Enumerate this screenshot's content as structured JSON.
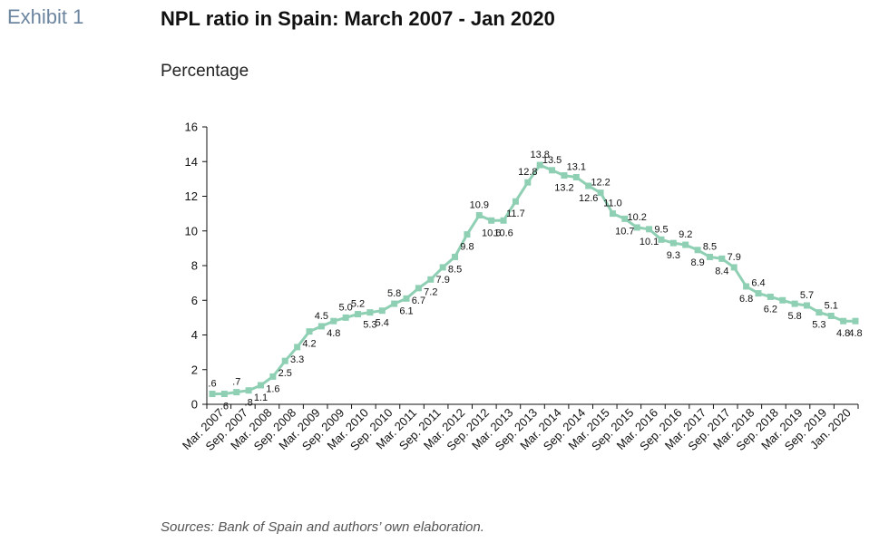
{
  "header": {
    "exhibit": "Exhibit 1",
    "title": "NPL ratio in Spain: March 2007 - Jan 2020",
    "subtitle": "Percentage"
  },
  "footer": {
    "source": "Sources: Bank of Spain and authors’ own elaboration."
  },
  "chart_data": {
    "type": "line",
    "title": "NPL ratio in Spain: March 2007 - Jan 2020",
    "ylabel": "Percentage",
    "ylim": [
      0,
      16
    ],
    "yticks": [
      "0",
      "2",
      "4",
      "6",
      "8",
      "10",
      "12",
      "14",
      "16"
    ],
    "line_color": "#8fd0b4",
    "x_tick_labels": [
      "Mar. 2007",
      "Sep. 2007",
      "Mar. 2008",
      "Sep. 2008",
      "Mar. 2009",
      "Sep. 2009",
      "Mar. 2010",
      "Sep. 2010",
      "Mar. 2011",
      "Sep. 2011",
      "Mar. 2012",
      "Sep. 2012",
      "Mar. 2013",
      "Sep. 2013",
      "Mar. 2014",
      "Sep. 2014",
      "Mar. 2015",
      "Sep. 2015",
      "Mar. 2016",
      "Sep. 2016",
      "Mar. 2017",
      "Sep. 2017",
      "Mar. 2018",
      "Sep. 2018",
      "Mar. 2019",
      "Sep. 2019",
      "Jan. 2020"
    ],
    "values": [
      0.6,
      0.6,
      0.7,
      0.8,
      1.1,
      1.6,
      2.5,
      3.3,
      4.2,
      4.5,
      4.8,
      5.0,
      5.2,
      5.3,
      5.4,
      5.8,
      6.1,
      6.7,
      7.2,
      7.9,
      8.5,
      9.8,
      10.9,
      10.6,
      10.6,
      11.7,
      12.8,
      13.8,
      13.5,
      13.2,
      13.1,
      12.6,
      12.2,
      11.0,
      10.7,
      10.2,
      10.1,
      9.5,
      9.3,
      9.2,
      8.9,
      8.5,
      8.4,
      7.9,
      6.8,
      6.4,
      6.2,
      6.0,
      5.8,
      5.7,
      5.3,
      5.1,
      4.8,
      4.8
    ],
    "value_labels": [
      ".6",
      ".6",
      ".7",
      ".8",
      "1.1",
      "1.6",
      "2.5",
      "3.3",
      "4.2",
      "4.5",
      "4.8",
      "5.0",
      "5.2",
      "5.3",
      "5.4",
      "5.8",
      "6.1",
      "6.7",
      "7.2",
      "7.9",
      "8.5",
      "9.8",
      "10.9",
      "10.6",
      "10.6",
      "11.7",
      "12.8",
      "13.8",
      "13.5",
      "13.2",
      "13.1",
      "12.6",
      "12.2",
      "11.0",
      "10.7",
      "10.2",
      "10.1",
      "9.5",
      "9.3",
      "9.2",
      "8.9",
      "8.5",
      "8.4",
      "7.9",
      "6.8",
      "6.4",
      "6.2",
      "",
      "5.8",
      "5.7",
      "5.3",
      "5.1",
      "4.8",
      "4.8"
    ],
    "label_position": [
      "above",
      "below",
      "above",
      "below",
      "below",
      "below",
      "below",
      "below",
      "below",
      "above",
      "below",
      "above",
      "above",
      "below",
      "below",
      "above",
      "below",
      "below",
      "below",
      "below",
      "below",
      "below",
      "above",
      "below",
      "below",
      "below",
      "above",
      "above",
      "above",
      "below",
      "above",
      "below",
      "above",
      "above",
      "below",
      "above",
      "below",
      "above",
      "below",
      "above",
      "below",
      "above",
      "below",
      "above",
      "below",
      "above",
      "below",
      "above",
      "below",
      "above",
      "below",
      "above",
      "below",
      "below"
    ],
    "grid": false,
    "legend": "none"
  }
}
